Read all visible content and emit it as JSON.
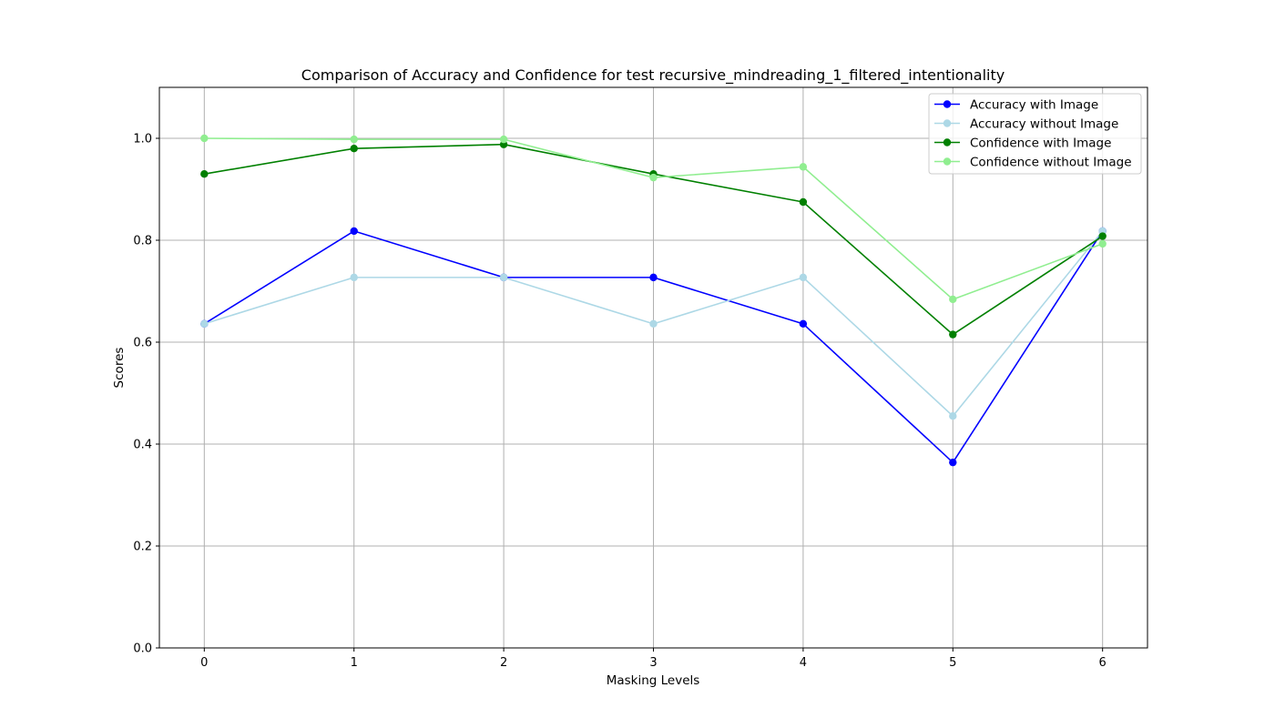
{
  "chart_data": {
    "type": "line",
    "title": "Comparison of Accuracy and Confidence for test recursive_mindreading_1_filtered_intentionality",
    "xlabel": "Masking Levels",
    "ylabel": "Scores",
    "x": [
      0,
      1,
      2,
      3,
      4,
      5,
      6
    ],
    "x_ticks": [
      "0",
      "1",
      "2",
      "3",
      "4",
      "5",
      "6"
    ],
    "xlim": [
      -0.3,
      6.3
    ],
    "ylim": [
      0,
      1.1
    ],
    "y_ticks": [
      "0.0",
      "0.2",
      "0.4",
      "0.6",
      "0.8",
      "1.0"
    ],
    "y_tick_values": [
      0,
      0.2,
      0.4,
      0.6,
      0.8,
      1.0
    ],
    "grid": true,
    "legend_position": "top-right",
    "series": [
      {
        "name": "Accuracy with Image",
        "color": "#0000ff",
        "values": [
          0.636,
          0.818,
          0.727,
          0.727,
          0.636,
          0.364,
          0.818
        ]
      },
      {
        "name": "Accuracy without Image",
        "color": "#add8e6",
        "values": [
          0.636,
          0.727,
          0.727,
          0.636,
          0.727,
          0.455,
          0.818
        ]
      },
      {
        "name": "Confidence with Image",
        "color": "#008000",
        "values": [
          0.93,
          0.98,
          0.988,
          0.93,
          0.875,
          0.615,
          0.808
        ]
      },
      {
        "name": "Confidence without Image",
        "color": "#90ee90",
        "values": [
          1.0,
          0.998,
          0.998,
          0.923,
          0.944,
          0.684,
          0.793
        ]
      }
    ]
  }
}
